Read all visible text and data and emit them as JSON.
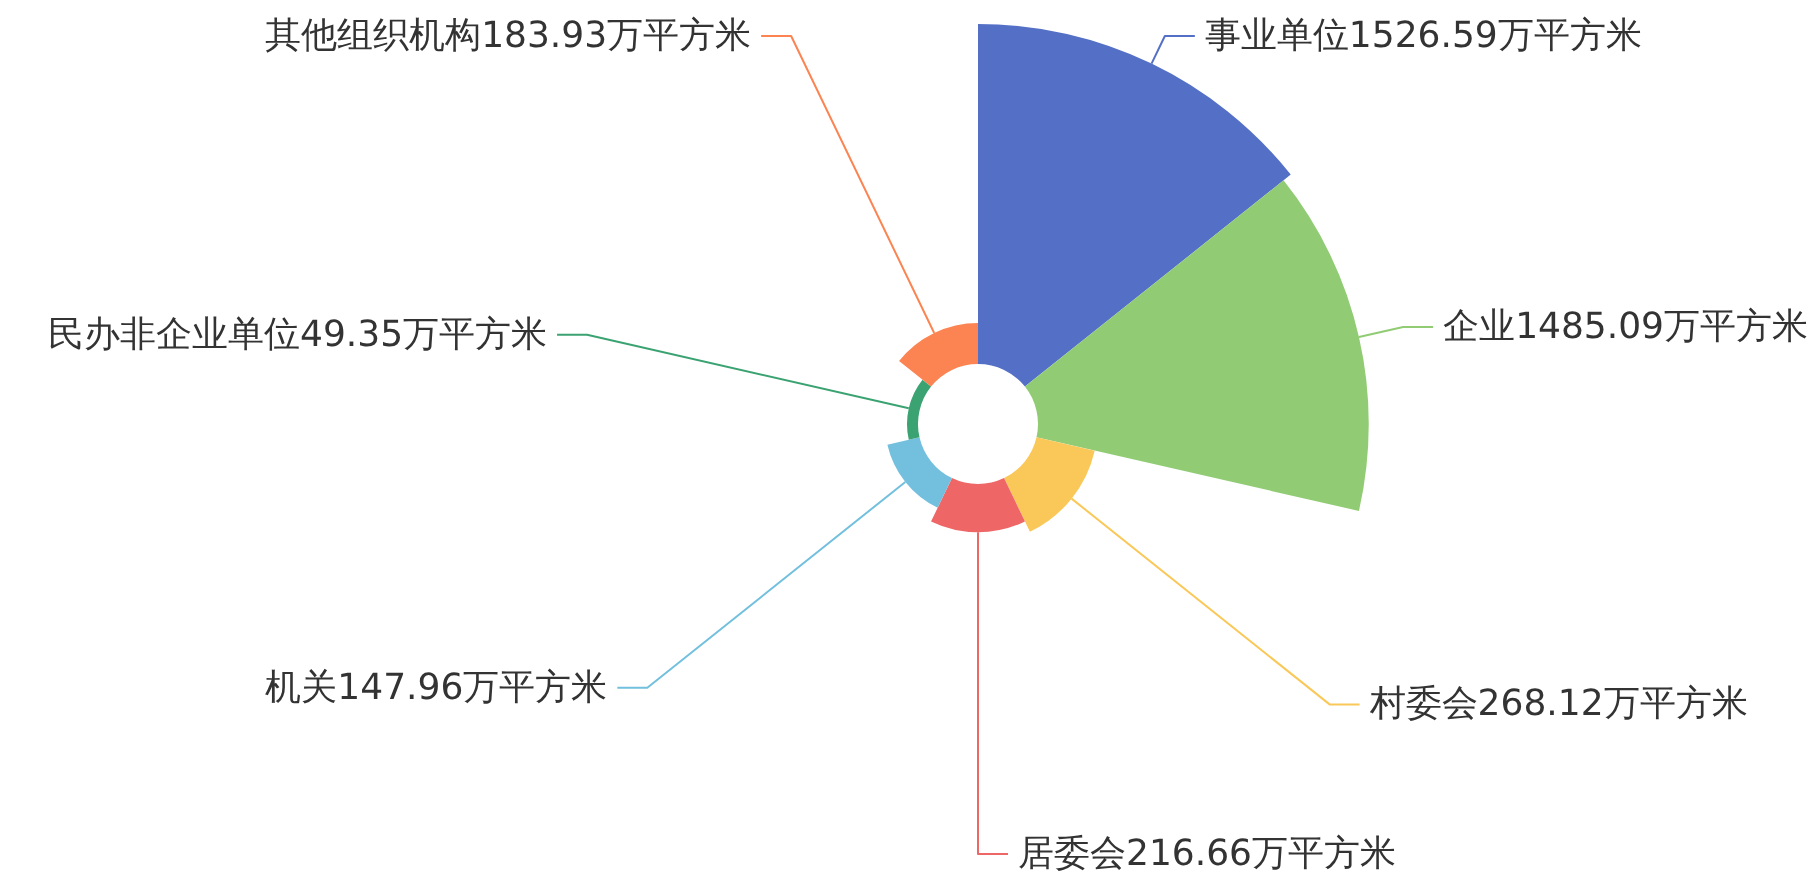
{
  "chart_data": {
    "type": "other",
    "categories": [
      "事业单位",
      "企业",
      "村委会",
      "居委会",
      "机关",
      "民办非企业单位",
      "其他组织机构"
    ],
    "values": [
      1526.59,
      1485.09,
      268.12,
      216.66,
      147.96,
      49.35,
      183.93
    ],
    "colors": [
      "#5470c6",
      "#91cc75",
      "#fac858",
      "#ee6666",
      "#73c0de",
      "#3ba272",
      "#fc8452"
    ],
    "value_labels": [
      "1526.59万平方米",
      "1485.09万平方米",
      "268.12万平方米",
      "216.66万平方米",
      "147.96万平方米",
      "49.35万平方米",
      "183.93万平方米"
    ]
  }
}
